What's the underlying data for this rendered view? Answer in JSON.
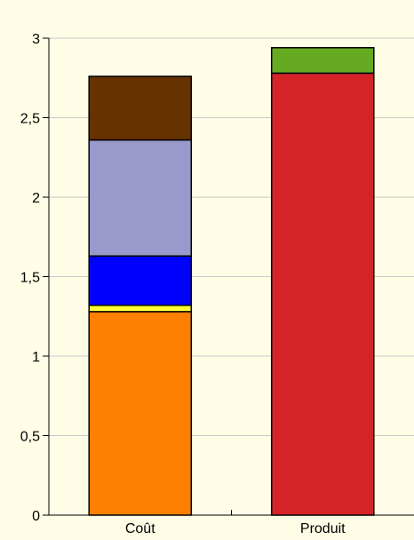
{
  "chart_data": {
    "type": "bar",
    "stacked": true,
    "categories": [
      "Coût",
      "Produit"
    ],
    "ylim": [
      0,
      3
    ],
    "yticks": [
      0,
      0.5,
      1,
      1.5,
      2,
      2.5,
      3
    ],
    "ytick_labels": [
      "0",
      "0,5",
      "1",
      "1,5",
      "2",
      "2,5",
      "3"
    ],
    "grid": true,
    "title": "",
    "xlabel": "",
    "ylabel": "",
    "stacks": [
      {
        "category": "Coût",
        "segments": [
          {
            "value": 1.28,
            "color": "#ff8000"
          },
          {
            "value": 0.04,
            "color": "#ffff33"
          },
          {
            "value": 0.31,
            "color": "#0000ff"
          },
          {
            "value": 0.73,
            "color": "#9999cc"
          },
          {
            "value": 0.4,
            "color": "#663300"
          }
        ]
      },
      {
        "category": "Produit",
        "segments": [
          {
            "value": 2.78,
            "color": "#d42428"
          },
          {
            "value": 0.16,
            "color": "#66aa22"
          }
        ]
      }
    ],
    "colors": {
      "background": "#fffde6",
      "grid": "#c8c8c8",
      "axis": "#000000"
    }
  }
}
